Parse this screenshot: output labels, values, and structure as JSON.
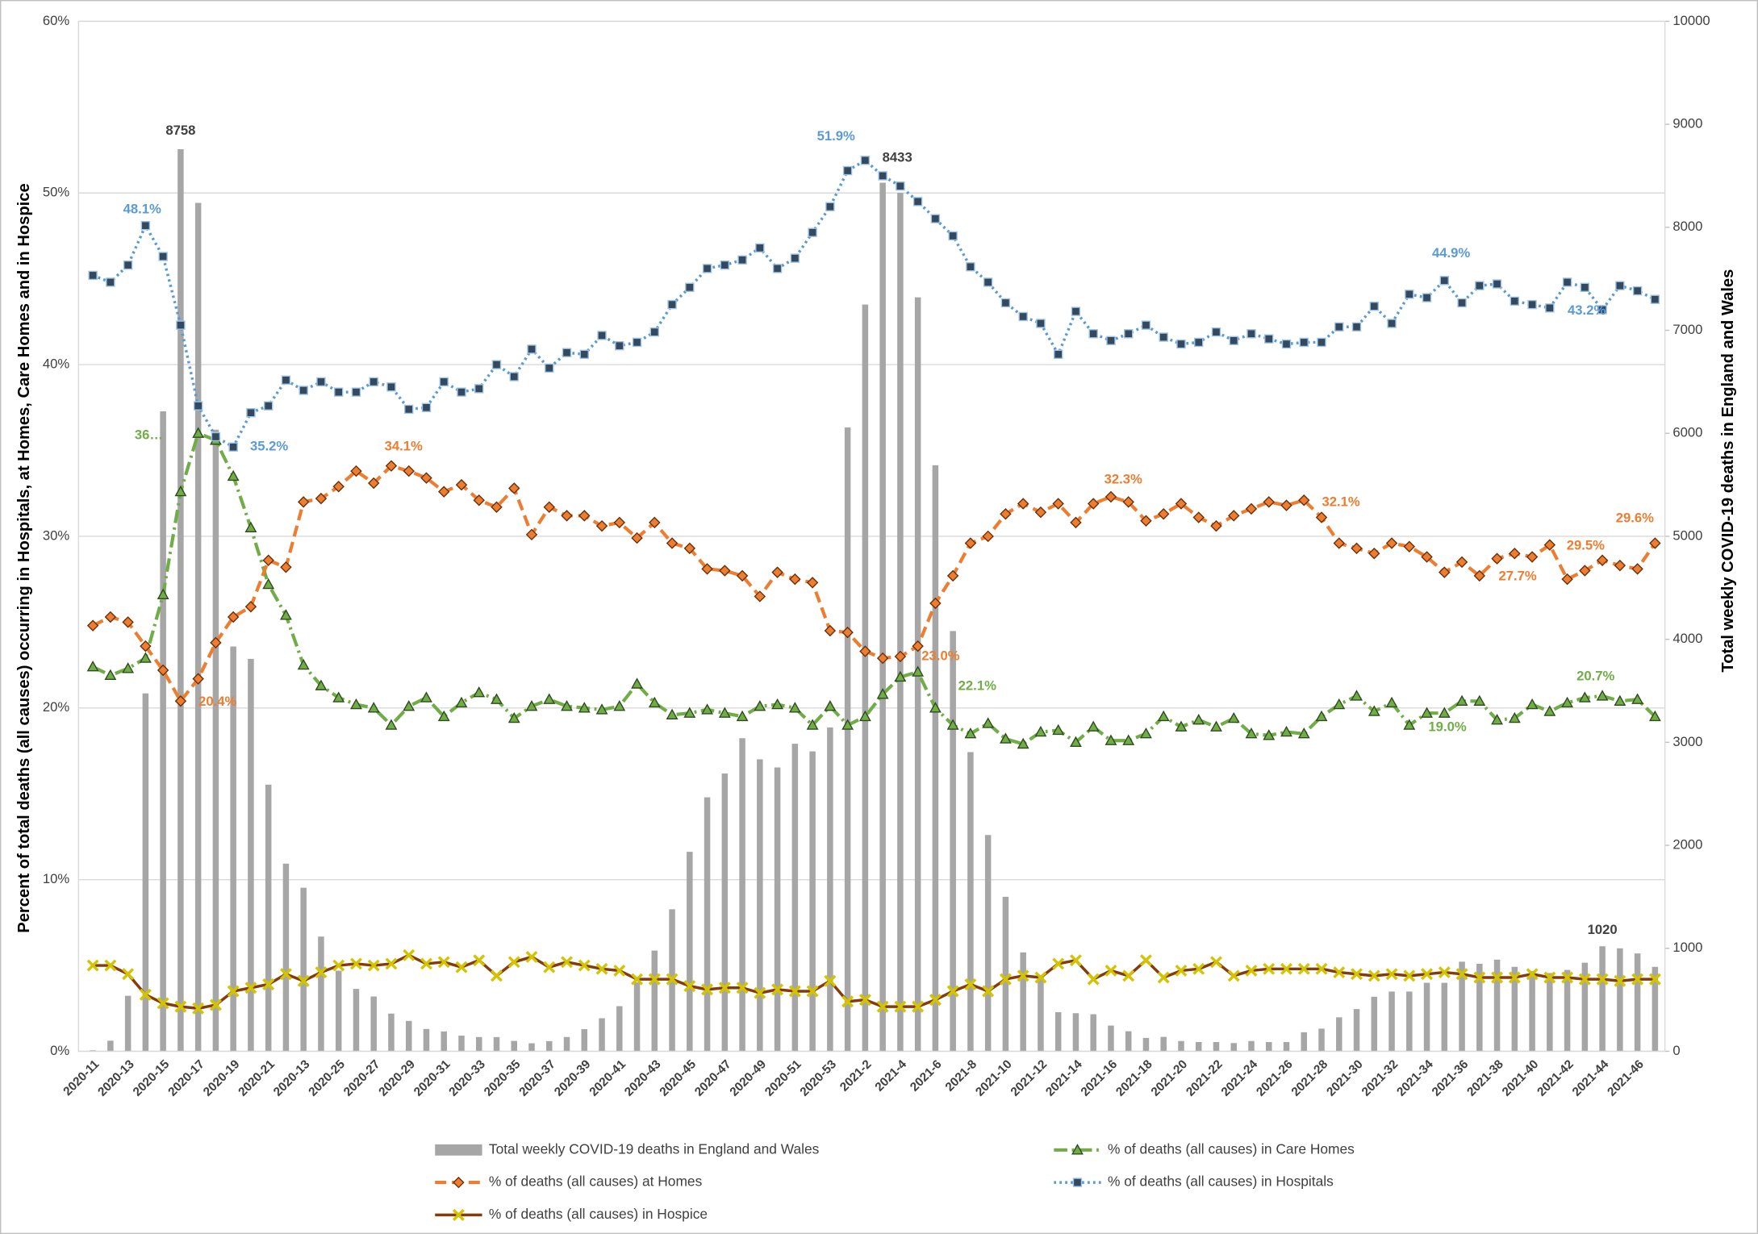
{
  "chart_data": {
    "type": "combo",
    "y_axis_label": "Percent of total deaths (all causes) occurring in  Hospitals, at Homes, Care Homes and in Hospice",
    "y2_axis_label": "Total weekly COVID-19 deaths in England and Wales",
    "categories": [
      "2020-11",
      null,
      "2020-13",
      null,
      "2020-15",
      null,
      "2020-17",
      null,
      "2020-19",
      null,
      "2020-21",
      null,
      "2020-13",
      null,
      "2020-25",
      null,
      "2020-27",
      null,
      "2020-29",
      null,
      "2020-31",
      null,
      "2020-33",
      null,
      "2020-35",
      null,
      "2020-37",
      null,
      "2020-39",
      null,
      "2020-41",
      null,
      "2020-43",
      null,
      "2020-45",
      null,
      "2020-47",
      null,
      "2020-49",
      null,
      "2020-51",
      null,
      "2020-53",
      null,
      "2021-2",
      null,
      "2021-4",
      null,
      "2021-6",
      null,
      "2021-8",
      null,
      "2021-10",
      null,
      "2021-12",
      null,
      "2021-14",
      null,
      "2021-16",
      null,
      "2021-18",
      null,
      "2021-20",
      null,
      "2021-22",
      null,
      "2021-24",
      null,
      "2021-26",
      null,
      "2021-28",
      null,
      "2021-30",
      null,
      "2021-32",
      null,
      "2021-34",
      null,
      "2021-36",
      null,
      "2021-38",
      null,
      "2021-40",
      null,
      "2021-42",
      null,
      "2021-44",
      null,
      "2021-46",
      null
    ],
    "ylim": [
      0,
      60
    ],
    "yticks": [
      {
        "value": 0,
        "label": "0%"
      },
      {
        "value": 10,
        "label": "10%"
      },
      {
        "value": 20,
        "label": "20%"
      },
      {
        "value": 30,
        "label": "30%"
      },
      {
        "value": 40,
        "label": "40%"
      },
      {
        "value": 50,
        "label": "50%"
      },
      {
        "value": 60,
        "label": "60%"
      }
    ],
    "y2lim": [
      0,
      10000
    ],
    "y2ticks": [
      0,
      1000,
      2000,
      3000,
      4000,
      5000,
      6000,
      7000,
      8000,
      9000,
      10000
    ],
    "grid": true,
    "legend": "bottom",
    "series": [
      {
        "name": "Total weekly COVID-19 deaths in England and Wales",
        "type": "bar",
        "axis": "y2",
        "color": "#a6a6a6",
        "values": [
          10,
          103,
          539,
          3475,
          6213,
          8758,
          8237,
          6035,
          3930,
          3810,
          2589,
          1822,
          1588,
          1114,
          783,
          606,
          532,
          366,
          295,
          217,
          193,
          152,
          139,
          138,
          101,
          78,
          99,
          139,
          215,
          321,
          438,
          670,
          978,
          1379,
          1937,
          2466,
          2697,
          3040,
          2835,
          2756,
          2986,
          2912,
          3144,
          6057,
          7250,
          8433,
          8335,
          7320,
          5690,
          4080,
          2905,
          2100,
          1500,
          960,
          740,
          380,
          370,
          360,
          250,
          195,
          130,
          140,
          100,
          90,
          90,
          80,
          100,
          90,
          90,
          185,
          220,
          330,
          410,
          530,
          580,
          580,
          665,
          665,
          870,
          850,
          890,
          820,
          780,
          760,
          790,
          860,
          1020,
          1000,
          950,
          820
        ],
        "value_labels": {
          "5": "8758",
          "45": "8433",
          "86": "1020"
        }
      },
      {
        "name": "% of deaths (all causes) in Care Homes",
        "type": "line",
        "color": "#70ad47",
        "style": "dashdot",
        "marker": "triangle",
        "values": [
          22.4,
          21.9,
          22.3,
          22.9,
          26.6,
          32.6,
          36.0,
          35.6,
          33.5,
          30.5,
          27.2,
          25.4,
          22.5,
          21.3,
          20.6,
          20.2,
          20.0,
          19.0,
          20.1,
          20.6,
          19.5,
          20.3,
          20.9,
          20.5,
          19.4,
          20.1,
          20.5,
          20.1,
          20.0,
          19.9,
          20.1,
          21.4,
          20.3,
          19.6,
          19.7,
          19.9,
          19.7,
          19.5,
          20.1,
          20.2,
          20.0,
          19.0,
          20.1,
          19.0,
          19.5,
          20.8,
          21.8,
          22.1,
          20.0,
          19.0,
          18.5,
          19.1,
          18.2,
          17.9,
          18.6,
          18.7,
          18.0,
          18.9,
          18.1,
          18.1,
          18.5,
          19.5,
          18.9,
          19.3,
          18.9,
          19.4,
          18.5,
          18.4,
          18.6,
          18.5,
          19.5,
          20.2,
          20.7,
          19.8,
          20.3,
          19.0,
          19.7,
          19.7,
          20.4,
          20.4,
          19.3,
          19.4,
          20.2,
          19.8,
          20.3,
          20.6,
          20.7,
          20.4,
          20.5,
          19.5
        ],
        "value_labels": {
          "6": "36…",
          "47": "22.1%",
          "75": "19.0%",
          "86": "20.7%"
        }
      },
      {
        "name": "% of deaths (all causes) at Homes",
        "type": "line",
        "color": "#ed7d31",
        "style": "dash",
        "marker": "diamond",
        "values": [
          24.8,
          25.3,
          25.0,
          23.6,
          22.2,
          20.4,
          21.7,
          23.8,
          25.3,
          25.9,
          28.6,
          28.2,
          32.0,
          32.2,
          32.9,
          33.8,
          33.1,
          34.1,
          33.8,
          33.4,
          32.6,
          33.0,
          32.1,
          31.7,
          32.8,
          30.1,
          31.7,
          31.2,
          31.2,
          30.6,
          30.8,
          29.9,
          30.8,
          29.6,
          29.3,
          28.1,
          28.0,
          27.7,
          26.5,
          27.9,
          27.5,
          27.3,
          24.5,
          24.4,
          23.3,
          22.9,
          23.0,
          23.6,
          26.1,
          27.7,
          29.6,
          30.0,
          31.3,
          31.9,
          31.4,
          31.9,
          30.8,
          31.9,
          32.3,
          32.0,
          30.9,
          31.3,
          31.9,
          31.1,
          30.6,
          31.2,
          31.6,
          32.0,
          31.8,
          32.1,
          31.1,
          29.6,
          29.3,
          29.0,
          29.6,
          29.4,
          28.8,
          27.9,
          28.5,
          27.7,
          28.7,
          29.0,
          28.8,
          29.5,
          27.5,
          28.0,
          28.6,
          28.3,
          28.1,
          29.6
        ],
        "value_labels": {
          "5": "20.4%",
          "17": "34.1%",
          "46": "23.0%",
          "58": "32.3%",
          "69": "32.1%",
          "79": "27.7%",
          "83": "29.5%",
          "89": "29.6%"
        }
      },
      {
        "name": "% of deaths (all causes) in Hospitals",
        "type": "line",
        "color": "#5b9bd5",
        "style": "dot",
        "marker": "square",
        "values": [
          45.2,
          44.8,
          45.8,
          48.1,
          46.3,
          42.3,
          37.6,
          35.8,
          35.2,
          37.2,
          37.6,
          39.1,
          38.5,
          39.0,
          38.4,
          38.4,
          39.0,
          38.7,
          37.4,
          37.5,
          39.0,
          38.4,
          38.6,
          40.0,
          39.3,
          40.9,
          39.8,
          40.7,
          40.6,
          41.7,
          41.1,
          41.3,
          41.9,
          43.5,
          44.5,
          45.6,
          45.8,
          46.1,
          46.8,
          45.6,
          46.2,
          47.7,
          49.2,
          51.3,
          51.9,
          51.0,
          50.4,
          49.5,
          48.5,
          47.5,
          45.7,
          44.8,
          43.6,
          42.8,
          42.4,
          40.6,
          43.1,
          41.8,
          41.4,
          41.8,
          42.3,
          41.6,
          41.2,
          41.3,
          41.9,
          41.4,
          41.8,
          41.5,
          41.2,
          41.3,
          41.3,
          42.2,
          42.2,
          43.4,
          42.4,
          44.1,
          43.9,
          44.9,
          43.6,
          44.6,
          44.7,
          43.7,
          43.5,
          43.3,
          44.8,
          44.5,
          43.2,
          44.6,
          44.3,
          43.8
        ],
        "value_labels": {
          "3": "48.1%",
          "8": "35.2%",
          "44": "51.9%",
          "77": "44.9%",
          "86": "43.2%"
        }
      },
      {
        "name": "% of deaths (all causes) in Hospice",
        "type": "line",
        "color": "#843c0c",
        "style": "solid",
        "marker": "x",
        "marker_color": "#d4c400",
        "values": [
          5.0,
          5.0,
          4.5,
          3.3,
          2.8,
          2.6,
          2.5,
          2.7,
          3.5,
          3.7,
          3.9,
          4.5,
          4.1,
          4.6,
          5.0,
          5.1,
          5.0,
          5.1,
          5.6,
          5.1,
          5.2,
          4.9,
          5.3,
          4.4,
          5.2,
          5.5,
          4.9,
          5.2,
          5.0,
          4.8,
          4.7,
          4.2,
          4.2,
          4.2,
          3.8,
          3.6,
          3.7,
          3.7,
          3.4,
          3.6,
          3.5,
          3.5,
          4.1,
          2.9,
          3.0,
          2.6,
          2.6,
          2.6,
          3.0,
          3.5,
          3.9,
          3.5,
          4.2,
          4.4,
          4.3,
          5.1,
          5.3,
          4.2,
          4.7,
          4.4,
          5.3,
          4.3,
          4.7,
          4.8,
          5.2,
          4.4,
          4.7,
          4.8,
          4.8,
          4.8,
          4.8,
          4.6,
          4.5,
          4.4,
          4.5,
          4.4,
          4.5,
          4.6,
          4.5,
          4.3,
          4.3,
          4.3,
          4.5,
          4.3,
          4.3,
          4.2,
          4.2,
          4.1,
          4.2,
          4.2
        ]
      }
    ]
  }
}
